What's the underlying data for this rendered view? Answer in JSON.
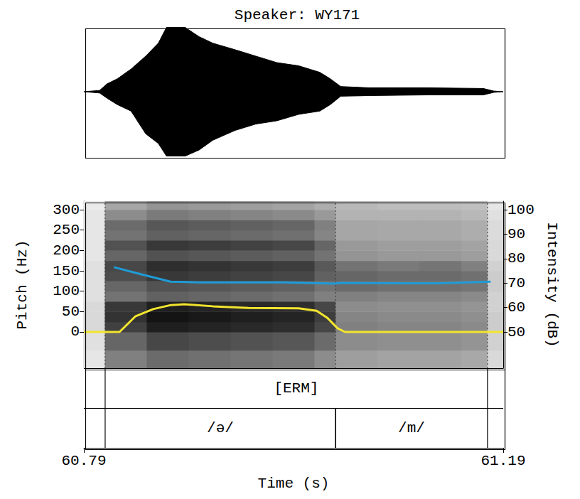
{
  "chart_data": [
    {
      "type": "waveform",
      "title": "Speaker: WY171",
      "color": "#000000",
      "tick_labels": false,
      "xlim": [
        60.79,
        61.19
      ],
      "ylim": [
        -1,
        1
      ],
      "x": [
        60.79,
        60.805,
        60.812,
        60.822,
        60.835,
        60.849,
        60.861,
        60.869,
        60.886,
        60.9,
        60.913,
        60.934,
        60.954,
        60.974,
        60.995,
        61.015,
        61.025,
        61.035,
        61.063,
        61.117,
        61.171,
        61.181,
        61.19
      ],
      "upper": [
        0,
        0.02,
        0.12,
        0.2,
        0.35,
        0.55,
        0.75,
        1,
        1,
        0.85,
        0.75,
        0.65,
        0.55,
        0.45,
        0.4,
        0.3,
        0.2,
        0.08,
        0.06,
        0.06,
        0.05,
        0.01,
        0
      ],
      "lower": [
        0,
        -0.02,
        -0.1,
        -0.2,
        -0.3,
        -0.65,
        -0.8,
        -1,
        -1,
        -0.9,
        -0.75,
        -0.6,
        -0.5,
        -0.45,
        -0.35,
        -0.3,
        -0.2,
        -0.07,
        -0.06,
        -0.05,
        -0.05,
        -0.01,
        0
      ]
    },
    {
      "type": "line",
      "x_label": "Time (s)",
      "y_label": "Pitch (Hz)",
      "y2_label": "Intensity (dB)",
      "xlim": [
        60.79,
        61.19
      ],
      "xticks": [
        60.79,
        61.19
      ],
      "ylim": [
        -89,
        321
      ],
      "yticks": [
        0,
        50,
        100,
        150,
        200,
        250,
        300
      ],
      "y2lim": [
        35.2,
        103.5
      ],
      "y2ticks": [
        50,
        60,
        70,
        80,
        90,
        100
      ],
      "series": [
        {
          "color": "#f2e52e",
          "axis": "y",
          "x": [
            60.79,
            60.824,
            60.839,
            60.856,
            60.873,
            60.886,
            60.913,
            60.947,
            60.995,
            61.012,
            61.022,
            61.032,
            61.039,
            61.19
          ],
          "values": [
            0,
            0,
            38,
            56,
            66,
            68,
            63,
            59,
            58,
            52,
            35,
            9,
            0,
            0
          ]
        },
        {
          "color": "#1f9bd7",
          "axis": "y2",
          "x": [
            60.8185,
            60.8456,
            60.8727,
            60.9,
            60.981,
            61.029,
            61.035,
            61.09,
            61.13,
            61.157,
            61.178
          ],
          "values": [
            76.5,
            73.5,
            70.6,
            70.3,
            70.3,
            69.8,
            70.1,
            69.9,
            69.9,
            70.3,
            70.6
          ]
        }
      ],
      "spectrogram": {
        "time_edges": [
          60.79,
          60.81,
          60.85,
          60.89,
          60.93,
          60.97,
          61.01,
          61.03,
          61.07,
          61.11,
          61.15,
          61.175,
          61.19
        ],
        "freq_edges": [
          -89,
          -45,
          0,
          25,
          50,
          75,
          100,
          125,
          150,
          175,
          200,
          225,
          250,
          275,
          300,
          321
        ],
        "range": [
          0,
          100
        ],
        "cells": [
          [
            10,
            12,
            15,
            15,
            15,
            12,
            12,
            12,
            12,
            10,
            10,
            10,
            10,
            10,
            8
          ],
          [
            50,
            60,
            75,
            80,
            78,
            55,
            60,
            70,
            72,
            60,
            68,
            55,
            58,
            45,
            35
          ],
          [
            58,
            72,
            88,
            92,
            88,
            62,
            68,
            78,
            82,
            68,
            78,
            62,
            66,
            52,
            42
          ],
          [
            56,
            70,
            86,
            90,
            86,
            60,
            66,
            76,
            80,
            66,
            76,
            60,
            64,
            50,
            40
          ],
          [
            54,
            68,
            84,
            88,
            84,
            58,
            64,
            74,
            78,
            64,
            74,
            58,
            62,
            48,
            38
          ],
          [
            52,
            66,
            82,
            86,
            82,
            56,
            62,
            72,
            76,
            62,
            72,
            56,
            60,
            46,
            36
          ],
          [
            45,
            58,
            72,
            76,
            72,
            50,
            55,
            62,
            65,
            55,
            60,
            48,
            50,
            40,
            32
          ],
          [
            38,
            45,
            50,
            48,
            45,
            50,
            58,
            60,
            55,
            42,
            40,
            35,
            35,
            30,
            28
          ],
          [
            36,
            44,
            48,
            46,
            44,
            48,
            56,
            58,
            52,
            40,
            38,
            34,
            34,
            30,
            26
          ],
          [
            36,
            44,
            48,
            46,
            44,
            48,
            56,
            58,
            54,
            40,
            38,
            34,
            34,
            30,
            26
          ],
          [
            34,
            42,
            46,
            44,
            42,
            46,
            54,
            56,
            50,
            38,
            36,
            32,
            32,
            28,
            25
          ],
          [
            15,
            18,
            20,
            20,
            18,
            18,
            20,
            20,
            18,
            15,
            15,
            14,
            14,
            12,
            10
          ]
        ]
      },
      "tiers": [
        [
          {
            "start": 60.8103,
            "end": 61.175,
            "label": "[ERM]"
          }
        ],
        [
          {
            "start": 60.8103,
            "end": 61.03,
            "label": "/ə/"
          },
          {
            "start": 61.03,
            "end": 61.175,
            "label": "/m/"
          }
        ]
      ]
    }
  ]
}
